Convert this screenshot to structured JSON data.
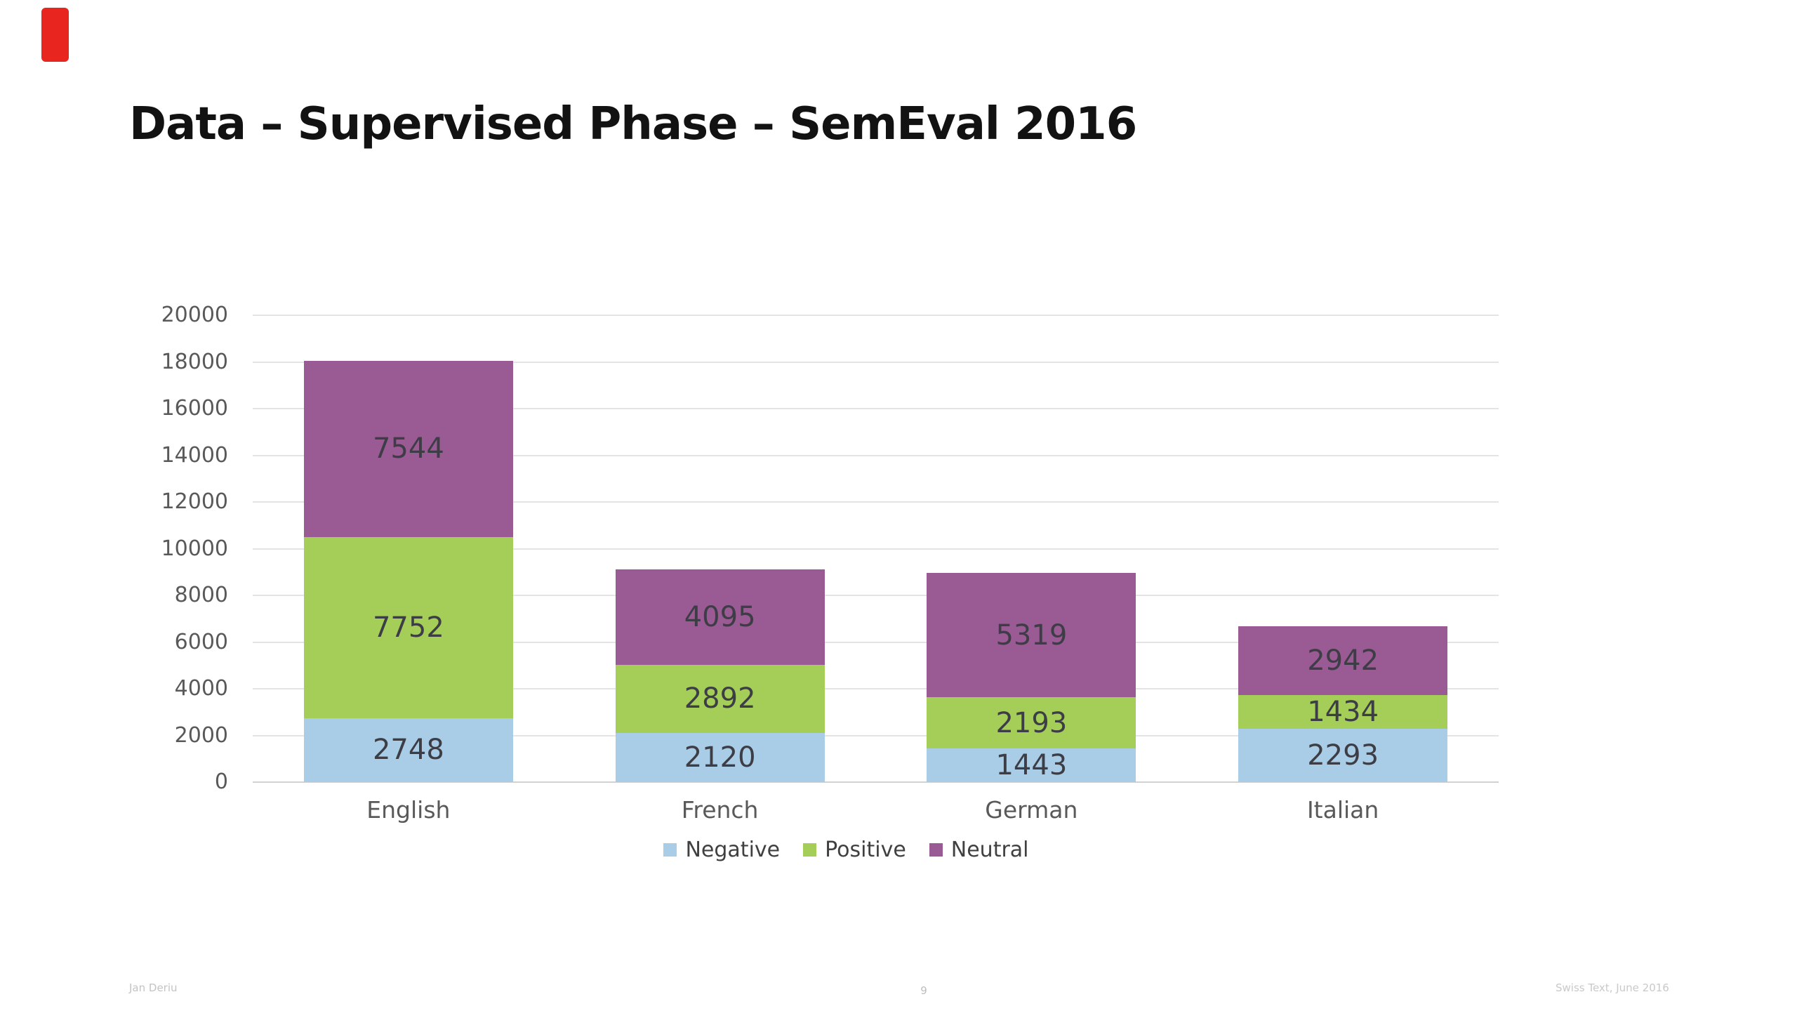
{
  "slide": {
    "title": "Data – Supervised Phase – SemEval 2016"
  },
  "decorations": {
    "red_marker_color": "#e8261f"
  },
  "footer": {
    "author": "Jan Deriu",
    "page_number": "9",
    "event": "Swiss Text, June 2016"
  },
  "chart_data": {
    "type": "bar",
    "stacked": true,
    "title": "",
    "xlabel": "",
    "ylabel": "",
    "categories": [
      "English",
      "French",
      "German",
      "Italian"
    ],
    "series": [
      {
        "name": "Negative",
        "color": "#a9cde7",
        "values": [
          2748,
          2120,
          1443,
          2293
        ]
      },
      {
        "name": "Positive",
        "color": "#a4ce58",
        "values": [
          7752,
          2892,
          2193,
          1434
        ]
      },
      {
        "name": "Neutral",
        "color": "#9a5a94",
        "values": [
          7544,
          4095,
          5319,
          2942
        ]
      }
    ],
    "totals": [
      18044,
      9107,
      8955,
      6669
    ],
    "ylim": [
      0,
      20000
    ],
    "ytick_step": 2000,
    "grid": true,
    "legend_position": "bottom",
    "label_color": "#3d3d45"
  }
}
